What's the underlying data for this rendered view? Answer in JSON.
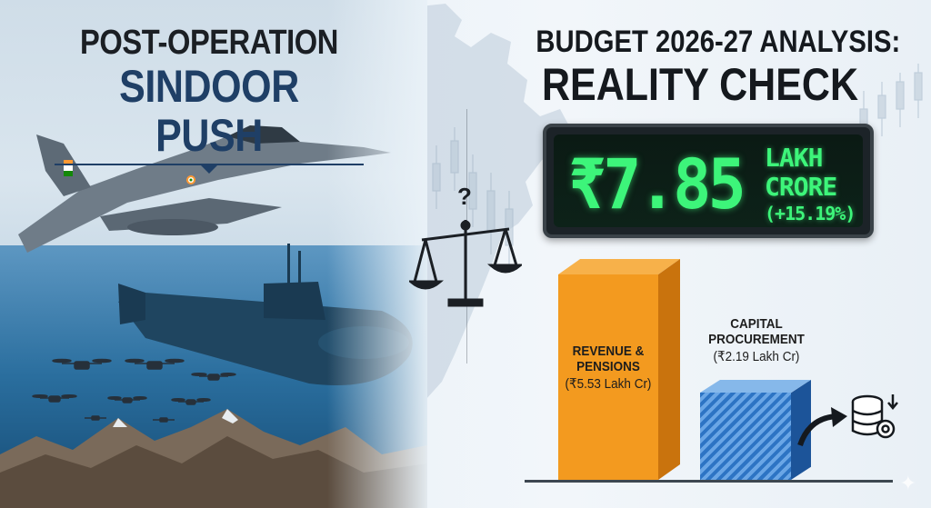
{
  "left": {
    "title_line1": "POST-OPERATION",
    "title_line2": "SINDOOR PUSH"
  },
  "right": {
    "title_line1": "BUDGET 2026-27 ANALYSIS:",
    "title_line2": "REALITY CHECK",
    "display": {
      "amount": "₹7.85",
      "unit_line1": "LAKH",
      "unit_line2": "CRORE",
      "change": "(+15.19%)"
    },
    "bars": [
      {
        "label": "REVENUE & PENSIONS",
        "value_text": "(₹5.53 Lakh Cr)",
        "value": 5.53,
        "color": "#f39a1f"
      },
      {
        "label": "CAPITAL PROCUREMENT",
        "value_text": "(₹2.19 Lakh Cr)",
        "value": 2.19,
        "color": "#2d74c4"
      }
    ]
  },
  "center": {
    "question_mark": "?"
  },
  "icons": [
    "fighter-jet-icon",
    "submarine-icon",
    "drone-icon",
    "scale-icon",
    "database-gear-icon",
    "arrow-icon",
    "sparkle-icon",
    "india-map-icon"
  ],
  "colors": {
    "accent_navy": "#1f3f66",
    "display_green": "#3df57a",
    "orange": "#f39a1f",
    "blue": "#2d74c4"
  }
}
